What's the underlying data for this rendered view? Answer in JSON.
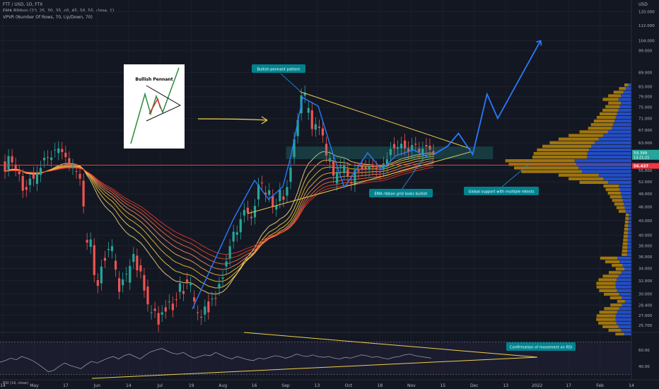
{
  "header": {
    "symbol": "FTT / USD, 1D, FTX",
    "indicator1": "EMA Ribbon (20, 25, 30, 35, 40, 45, 50, 55, close, 1)",
    "indicator2": "VPVR (Number Of Rows, 70, Up/Down, 70)",
    "currency": "USD"
  },
  "rsi": {
    "label": "RSI (14, close)",
    "ticks": [
      {
        "v": 60,
        "label": "60.00"
      },
      {
        "v": 40,
        "label": "40.00"
      }
    ]
  },
  "annotations": {
    "pennant_label": "Bullish pennant pattern",
    "ribbon_label": "EMA ribbon grid looks bullish",
    "support_label": "Global support with multiple retests",
    "rsi_label": "Confirmation of movement on RSI",
    "inset_title": "Bullish Pennant"
  },
  "price_labels": {
    "current": "59.399",
    "countdown": "13:21:21",
    "support": "56.437"
  },
  "chart_data": {
    "type": "candlestick",
    "ylim": [
      25.0,
      127.0
    ],
    "log_scale": true,
    "y_ticks": [
      {
        "v": 120,
        "label": "120.000"
      },
      {
        "v": 112,
        "label": "112.000"
      },
      {
        "v": 104,
        "label": "104.000"
      },
      {
        "v": 99,
        "label": "99.000"
      },
      {
        "v": 89,
        "label": "89.000"
      },
      {
        "v": 83,
        "label": "83.000"
      },
      {
        "v": 79,
        "label": "79.000"
      },
      {
        "v": 75,
        "label": "75.000"
      },
      {
        "v": 71,
        "label": "71.000"
      },
      {
        "v": 67,
        "label": "67.000"
      },
      {
        "v": 63,
        "label": "63.000"
      },
      {
        "v": 55,
        "label": "55.000"
      },
      {
        "v": 52,
        "label": "52.000"
      },
      {
        "v": 49,
        "label": "49.000"
      },
      {
        "v": 46,
        "label": "46.000"
      },
      {
        "v": 43,
        "label": "43.000"
      },
      {
        "v": 40,
        "label": "40.000"
      },
      {
        "v": 38,
        "label": "38.000"
      },
      {
        "v": 36,
        "label": "36.000"
      },
      {
        "v": 34,
        "label": "34.000"
      },
      {
        "v": 32,
        "label": "32.000"
      },
      {
        "v": 30,
        "label": "30.000"
      },
      {
        "v": 28.4,
        "label": "28.400"
      },
      {
        "v": 27,
        "label": "27.000"
      },
      {
        "v": 25.7,
        "label": "25.700"
      }
    ],
    "x_ticks": [
      "14",
      "May",
      "17",
      "Jun",
      "14",
      "Jul",
      "19",
      "Aug",
      "16",
      "Sep",
      "13",
      "Oct",
      "18",
      "Nov",
      "15",
      "Dec",
      "13",
      "2022",
      "17",
      "Feb",
      "14"
    ],
    "support_level": 56.437,
    "current_price": 59.399,
    "candles": [
      [
        0,
        57.5,
        54.7
      ],
      [
        1,
        55.3,
        59
      ],
      [
        2,
        59,
        57.2
      ],
      [
        3,
        56.6,
        55.4
      ],
      [
        4,
        54.7,
        54
      ],
      [
        5,
        53.5,
        49.8
      ],
      [
        6,
        50.7,
        50
      ],
      [
        7,
        51.2,
        52.8
      ],
      [
        8,
        54.1,
        52.8
      ],
      [
        9,
        51.5,
        54.3
      ],
      [
        10,
        53.8,
        55.7
      ],
      [
        11,
        57.8,
        58.5
      ],
      [
        12,
        58.7,
        58.5
      ],
      [
        13,
        57.9,
        58.6
      ],
      [
        14,
        60.7,
        60.9
      ],
      [
        15,
        59.9,
        61.3
      ],
      [
        16,
        61.1,
        60.2
      ],
      [
        17,
        60,
        58.7
      ],
      [
        18,
        58.4,
        56.9
      ],
      [
        19,
        55.8,
        56.2
      ],
      [
        20,
        54.8,
        54.7
      ],
      [
        21,
        54.1,
        52.8
      ],
      [
        22,
        52.3,
        46.1
      ],
      [
        23,
        39.1,
        38.6
      ],
      [
        24,
        37.8,
        39.2
      ],
      [
        25,
        38.1,
        32.9
      ],
      [
        26,
        32.1,
        31.2
      ],
      [
        27,
        31.6,
        34.3
      ],
      [
        28,
        35.8,
        35.3
      ],
      [
        29,
        37.2,
        37.4
      ],
      [
        30,
        37,
        37.9
      ],
      [
        31,
        35.3,
        33.8
      ],
      [
        32,
        32.4,
        30.3
      ],
      [
        33,
        31.3,
        32.2
      ],
      [
        34,
        33,
        33.1
      ],
      [
        35,
        31.7,
        34.4
      ],
      [
        36,
        35.1,
        36.5
      ],
      [
        37,
        36.2,
        33.7
      ],
      [
        38,
        34.5,
        33.5
      ],
      [
        39,
        32.9,
        30.5
      ],
      [
        40,
        31.1,
        28.5
      ],
      [
        41,
        27.4,
        27.4
      ],
      [
        42,
        27.9,
        27.6
      ],
      [
        43,
        27.3,
        25.8
      ],
      [
        44,
        27.1,
        27.4
      ],
      [
        45,
        28.1,
        27.5
      ],
      [
        46,
        28.8,
        28.9
      ],
      [
        47,
        28.6,
        27.7
      ],
      [
        48,
        29.2,
        29.1
      ],
      [
        49,
        30.3,
        31.6
      ],
      [
        50,
        30.4,
        30
      ],
      [
        51,
        32.2,
        31.8
      ],
      [
        52,
        31.3,
        31.5
      ],
      [
        53,
        29.5,
        28.9
      ],
      [
        54,
        27.4,
        27.3
      ],
      [
        55,
        26.8,
        26.7
      ],
      [
        56,
        27.1,
        28.2
      ],
      [
        57,
        28.9,
        27.4
      ],
      [
        58,
        29.3,
        29.3
      ],
      [
        59,
        29.4,
        29.3
      ],
      [
        60,
        30.8,
        31.5
      ],
      [
        61,
        32.3,
        32.5
      ],
      [
        62,
        34.3,
        35.2
      ],
      [
        63,
        35.7,
        37.9
      ],
      [
        64,
        38.8,
        40.7
      ],
      [
        65,
        40.1,
        40.6
      ],
      [
        66,
        40.6,
        43.3
      ],
      [
        67,
        44.1,
        45.3
      ],
      [
        68,
        45.8,
        44.6
      ],
      [
        69,
        43.8,
        43.5
      ],
      [
        70,
        43.7,
        46.2
      ],
      [
        71,
        47.7,
        51.3
      ],
      [
        72,
        51.8,
        51.7
      ],
      [
        73,
        49.3,
        48.8
      ],
      [
        74,
        48.8,
        49.9
      ],
      [
        75,
        48.5,
        46.1
      ],
      [
        76,
        45.4,
        46.3
      ],
      [
        77,
        47.3,
        50
      ],
      [
        78,
        48.4,
        47.6
      ],
      [
        79,
        48.6,
        50.7
      ],
      [
        80,
        52,
        55.8
      ],
      [
        81,
        58.7,
        64.1
      ],
      [
        82,
        65.1,
        70.5
      ],
      [
        83,
        72.8,
        79.5
      ],
      [
        84,
        79.4,
        80.6
      ],
      [
        85,
        73,
        74.7
      ],
      [
        86,
        73.9,
        67.4
      ],
      [
        87,
        67.2,
        69
      ],
      [
        88,
        68.2,
        67.8
      ],
      [
        89,
        67.6,
        65.3
      ],
      [
        90,
        62.7,
        59.2
      ],
      [
        91,
        57.4,
        58.4
      ],
      [
        92,
        57.5,
        53.6
      ],
      [
        93,
        51.6,
        54.6
      ],
      [
        94,
        56.1,
        56.3
      ],
      [
        95,
        54.3,
        56.6
      ],
      [
        96,
        55.4,
        53.5
      ],
      [
        97,
        52,
        51.6
      ],
      [
        98,
        51.2,
        55.1
      ],
      [
        99,
        55.1,
        54.7
      ],
      [
        100,
        56.1,
        55.3
      ],
      [
        101,
        55.9,
        55.3
      ],
      [
        102,
        55.2,
        56.1
      ],
      [
        103,
        56.4,
        55.8
      ],
      [
        104,
        55.7,
        55.2
      ],
      [
        105,
        54.8,
        54.5
      ],
      [
        106,
        55.2,
        56.9
      ],
      [
        107,
        56.4,
        58.1
      ],
      [
        108,
        59.3,
        61.1
      ],
      [
        109,
        62.6,
        61.3
      ],
      [
        110,
        61.2,
        61.6
      ],
      [
        111,
        61.3,
        62.7
      ],
      [
        112,
        63.7,
        61.3
      ],
      [
        113,
        61.3,
        60.4
      ],
      [
        114,
        60.6,
        62.3
      ],
      [
        115,
        62.7,
        62.4
      ],
      [
        116,
        61.2,
        60.2
      ],
      [
        117,
        59.4,
        61.2
      ],
      [
        118,
        62.3,
        61.9
      ],
      [
        119,
        62.1,
        60.9
      ],
      [
        120,
        60.5,
        59.4
      ]
    ],
    "projection": [
      [
        120,
        59.4
      ],
      [
        124,
        62
      ],
      [
        127,
        66
      ],
      [
        131,
        59.5
      ],
      [
        135,
        80
      ],
      [
        138,
        71
      ],
      [
        150,
        104
      ]
    ],
    "rsi_values": [
      45,
      47,
      50,
      48,
      52,
      50,
      47,
      43,
      38,
      33,
      35,
      40,
      44,
      41,
      39,
      37,
      42,
      46,
      44,
      47,
      50,
      52,
      49,
      53,
      55,
      52,
      49,
      54,
      58,
      60,
      62,
      59,
      56,
      55,
      57,
      53,
      50,
      52,
      54,
      53,
      57,
      54,
      51,
      49,
      52,
      50,
      48,
      47,
      50,
      49,
      51,
      53,
      52,
      50,
      52,
      55,
      53,
      52,
      54,
      52,
      51,
      52,
      50,
      49,
      51,
      50,
      52,
      54,
      53,
      51,
      52,
      50,
      49,
      51,
      52,
      54,
      55,
      53,
      52,
      51,
      50
    ]
  }
}
